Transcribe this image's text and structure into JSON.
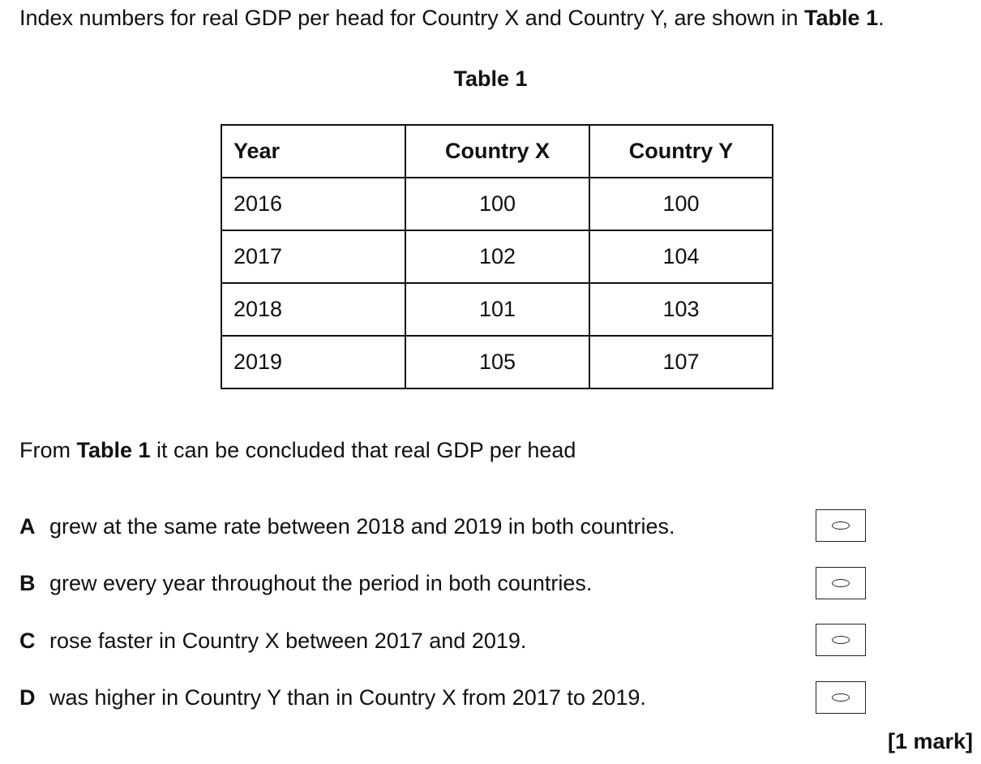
{
  "intro": {
    "text_before": "Index numbers for real GDP per head for Country X and Country Y, are shown in ",
    "bold_ref": "Table 1",
    "text_after": "."
  },
  "table": {
    "title": "Table 1",
    "headers": [
      "Year",
      "Country X",
      "Country Y"
    ],
    "rows": [
      [
        "2016",
        "100",
        "100"
      ],
      [
        "2017",
        "102",
        "104"
      ],
      [
        "2018",
        "101",
        "103"
      ],
      [
        "2019",
        "105",
        "107"
      ]
    ]
  },
  "question": {
    "text_before": "From ",
    "bold_ref": "Table 1",
    "text_after": " it can be concluded that real GDP per head"
  },
  "options": [
    {
      "letter": "A",
      "text": "grew at the same rate between 2018 and 2019 in both countries."
    },
    {
      "letter": "B",
      "text": "grew every year throughout the period in both countries."
    },
    {
      "letter": "C",
      "text": "rose faster in Country X between 2017 and 2019."
    },
    {
      "letter": "D",
      "text": "was higher in Country Y than in Country X from 2017 to 2019."
    }
  ],
  "marks": "[1 mark]"
}
